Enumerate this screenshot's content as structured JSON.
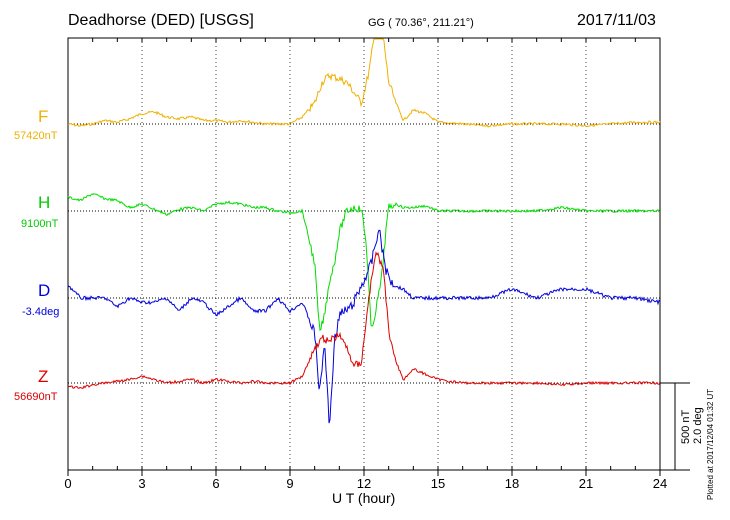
{
  "header": {
    "station": "Deadhorse (DED)  [USGS]",
    "coords": "GG ( 70.36°, 211.21°)",
    "date": "2017/11/03"
  },
  "components": [
    {
      "id": "F",
      "label": "F",
      "baseline": "57420nT",
      "color": "#f0b000"
    },
    {
      "id": "H",
      "label": "H",
      "baseline": "9100nT",
      "color": "#00dd00"
    },
    {
      "id": "D",
      "label": "D",
      "baseline": "-3.4deg",
      "color": "#0000dd"
    },
    {
      "id": "Z",
      "label": "Z",
      "baseline": "56690nT",
      "color": "#dd0000"
    }
  ],
  "xaxis": {
    "label": "U T (hour)",
    "ticks": [
      "0",
      "3",
      "6",
      "9",
      "12",
      "15",
      "18",
      "21",
      "24"
    ]
  },
  "scale": {
    "line1": "500 nT",
    "line2": "2.0 deg"
  },
  "plotted_note": "Plotted at 2017/12/04 01:32 UT",
  "chart_data": {
    "type": "line",
    "x_range": [
      0,
      24
    ],
    "x_unit": "hour (UT)",
    "scale_note": "500 nT / 2.0 deg per bar",
    "grid": true,
    "series": [
      {
        "name": "F",
        "x": [
          0,
          0.5,
          1,
          1.5,
          2,
          2.5,
          3,
          3.5,
          4,
          4.5,
          5,
          5.5,
          6,
          6.5,
          7,
          7.5,
          8,
          8.5,
          9,
          9.5,
          10,
          10.3,
          10.6,
          11,
          11.3,
          11.6,
          11.9,
          12.2,
          12.5,
          12.8,
          13,
          13.3,
          13.6,
          14,
          14.5,
          15,
          16,
          17,
          18,
          19,
          20,
          21,
          22,
          23,
          24
        ],
        "y": [
          0,
          -10,
          0,
          20,
          10,
          30,
          60,
          70,
          40,
          30,
          40,
          20,
          20,
          10,
          20,
          10,
          0,
          0,
          0,
          40,
          120,
          240,
          280,
          260,
          240,
          180,
          120,
          300,
          580,
          480,
          240,
          120,
          20,
          80,
          60,
          10,
          0,
          -10,
          0,
          0,
          0,
          -10,
          0,
          10,
          10
        ]
      },
      {
        "name": "H",
        "x": [
          0,
          0.5,
          1,
          1.5,
          2,
          2.5,
          3,
          3.5,
          4,
          4.5,
          5,
          5.5,
          6,
          6.5,
          7,
          7.5,
          8,
          8.5,
          9,
          9.5,
          10,
          10.2,
          10.4,
          10.6,
          10.8,
          11,
          11.3,
          11.6,
          11.9,
          12.1,
          12.3,
          12.5,
          12.7,
          12.9,
          13,
          13.3,
          13.6,
          14,
          14.5,
          15,
          16,
          17,
          18,
          19,
          20,
          21,
          22,
          23,
          24
        ],
        "y": [
          80,
          60,
          100,
          70,
          60,
          20,
          40,
          10,
          -20,
          10,
          20,
          0,
          40,
          50,
          40,
          20,
          20,
          0,
          -10,
          0,
          -300,
          -700,
          -600,
          -400,
          -300,
          -120,
          0,
          20,
          10,
          -200,
          -700,
          -550,
          -400,
          -100,
          20,
          40,
          20,
          20,
          30,
          0,
          0,
          0,
          0,
          0,
          20,
          0,
          0,
          0,
          0
        ]
      },
      {
        "name": "D",
        "x": [
          0,
          0.5,
          1,
          1.5,
          2,
          2.5,
          3,
          3.5,
          4,
          4.5,
          5,
          5.5,
          6,
          6.5,
          7,
          7.5,
          8,
          8.5,
          9,
          9.5,
          10,
          10.2,
          10.4,
          10.6,
          10.8,
          11,
          11.5,
          12,
          12.3,
          12.6,
          12.9,
          13.2,
          13.6,
          14,
          15,
          16,
          17,
          18,
          19,
          20,
          21,
          22,
          23,
          24
        ],
        "y": [
          0.3,
          0.0,
          0.0,
          0.0,
          -0.2,
          0.0,
          -0.1,
          -0.1,
          0.0,
          -0.3,
          0.0,
          -0.1,
          -0.4,
          -0.2,
          0.0,
          -0.3,
          -0.3,
          0.0,
          -0.3,
          -0.1,
          -0.8,
          -2.2,
          -1.0,
          -3.0,
          -1.0,
          -0.4,
          -0.2,
          0.4,
          0.8,
          1.6,
          0.6,
          0.3,
          0.2,
          0.0,
          0.0,
          0.0,
          0.0,
          0.2,
          0.0,
          0.2,
          0.2,
          0.0,
          0.0,
          -0.1
        ]
      },
      {
        "name": "Z",
        "x": [
          0,
          0.5,
          1,
          1.5,
          2,
          2.5,
          3,
          3.5,
          4,
          4.5,
          5,
          5.5,
          6,
          6.5,
          7,
          7.5,
          8,
          8.5,
          9,
          9.5,
          10,
          10.3,
          10.6,
          11,
          11.3,
          11.6,
          11.9,
          12.2,
          12.5,
          12.8,
          13,
          13.3,
          13.6,
          14,
          14.5,
          15,
          16,
          17,
          18,
          19,
          20,
          21,
          22,
          23,
          24
        ],
        "y": [
          -20,
          -30,
          -10,
          0,
          10,
          20,
          40,
          20,
          0,
          10,
          20,
          0,
          20,
          10,
          0,
          10,
          0,
          0,
          0,
          40,
          200,
          260,
          240,
          280,
          200,
          100,
          120,
          500,
          760,
          640,
          300,
          120,
          20,
          80,
          50,
          20,
          0,
          0,
          0,
          0,
          -10,
          0,
          0,
          0,
          0
        ]
      }
    ]
  }
}
